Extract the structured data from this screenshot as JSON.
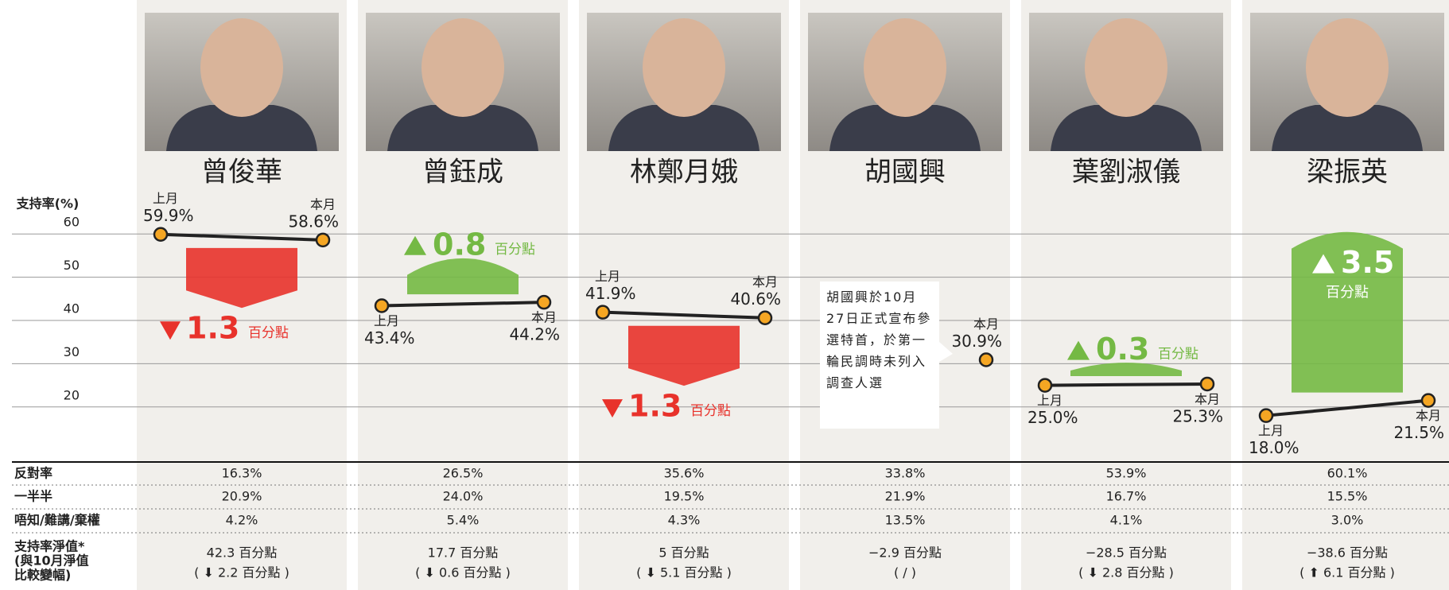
{
  "chart_data": {
    "type": "slope",
    "y_axis_label": "支持率(%)",
    "ylim": [
      15,
      65
    ],
    "yticks": [
      20,
      30,
      40,
      50,
      60
    ],
    "grid": true,
    "last_label": "上月",
    "this_label": "本月",
    "unit_label": "百分點",
    "up_color": "#74b944",
    "down_color": "#e8322b",
    "line_color": "#222222",
    "point_color": "#f5a623",
    "candidates": [
      {
        "name": "曾俊華",
        "values": [
          59.9,
          58.6
        ],
        "value_labels": [
          "59.9%",
          "58.6%"
        ],
        "change": 1.3
      },
      {
        "name": "曾鈺成",
        "values": [
          43.4,
          44.2
        ],
        "value_labels": [
          "43.4%",
          "44.2%"
        ],
        "change": 0.8
      },
      {
        "name": "林鄭月娥",
        "values": [
          41.9,
          40.6
        ],
        "value_labels": [
          "41.9%",
          "40.6%"
        ],
        "change": 1.3
      },
      {
        "name": "胡國興",
        "values": [
          null,
          30.9
        ],
        "value_labels": [
          null,
          "30.9%"
        ],
        "change": null,
        "note": "胡國興於10月27日正式宣布參選特首，於第一輪民調時未列入調查人選"
      },
      {
        "name": "葉劉淑儀",
        "values": [
          25.0,
          25.3
        ],
        "value_labels": [
          "25.0%",
          "25.3%"
        ],
        "change": 0.3
      },
      {
        "name": "梁振英",
        "values": [
          18.0,
          21.5
        ],
        "value_labels": [
          "18.0%",
          "21.5%"
        ],
        "change": 3.5
      }
    ]
  },
  "table": {
    "rows": [
      {
        "label": [
          "反對率"
        ],
        "cells": [
          [
            "16.3%"
          ],
          [
            "26.5%"
          ],
          [
            "35.6%"
          ],
          [
            "33.8%"
          ],
          [
            "53.9%"
          ],
          [
            "60.1%"
          ]
        ]
      },
      {
        "label": [
          "一半半"
        ],
        "cells": [
          [
            "20.9%"
          ],
          [
            "24.0%"
          ],
          [
            "19.5%"
          ],
          [
            "21.9%"
          ],
          [
            "16.7%"
          ],
          [
            "15.5%"
          ]
        ]
      },
      {
        "label": [
          "唔知/難講/棄權"
        ],
        "cells": [
          [
            "4.2%"
          ],
          [
            "5.4%"
          ],
          [
            "4.3%"
          ],
          [
            "13.5%"
          ],
          [
            "4.1%"
          ],
          [
            "3.0%"
          ]
        ]
      },
      {
        "label": [
          "支持率淨值*",
          "(與10月淨值",
          "比較變幅)"
        ],
        "cells": [
          [
            "42.3 百分點",
            "( ⬇ 2.2 百分點 )"
          ],
          [
            "17.7 百分點",
            "( ⬇ 0.6 百分點 )"
          ],
          [
            "5 百分點",
            "( ⬇ 5.1 百分點 )"
          ],
          [
            "−2.9 百分點",
            "( / )"
          ],
          [
            "−28.5 百分點",
            "( ⬇ 2.8 百分點 )"
          ],
          [
            "−38.6 百分點",
            "( ⬆ 6.1 百分點 )"
          ]
        ]
      }
    ]
  }
}
